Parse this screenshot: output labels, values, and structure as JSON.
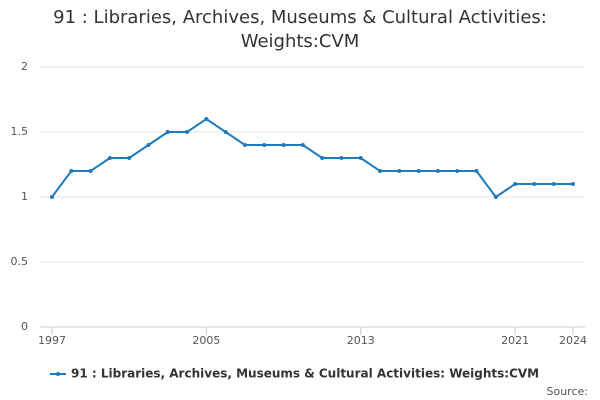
{
  "chart_data": {
    "type": "line",
    "title": "91 : Libraries, Archives, Museums & Cultural Activities: Weights:CVM",
    "x": [
      1997,
      1998,
      1999,
      2000,
      2001,
      2002,
      2003,
      2004,
      2005,
      2006,
      2007,
      2008,
      2009,
      2010,
      2011,
      2012,
      2013,
      2014,
      2015,
      2016,
      2017,
      2018,
      2019,
      2020,
      2021,
      2022,
      2023,
      2024
    ],
    "series": [
      {
        "name": "91 : Libraries, Archives, Museums & Cultural Activities: Weights:CVM",
        "color": "#1f7bbb",
        "values": [
          1.0,
          1.2,
          1.2,
          1.3,
          1.3,
          1.4,
          1.5,
          1.5,
          1.6,
          1.5,
          1.4,
          1.4,
          1.4,
          1.4,
          1.3,
          1.3,
          1.3,
          1.2,
          1.2,
          1.2,
          1.2,
          1.2,
          1.2,
          1.0,
          1.1,
          1.1,
          1.1,
          1.1
        ]
      }
    ],
    "xlim": [
      1997,
      2024
    ],
    "xticks": [
      1997,
      2005,
      2013,
      2021,
      2024
    ],
    "ylim": [
      0,
      2
    ],
    "yticks": [
      0,
      0.5,
      1,
      1.5,
      2
    ],
    "grid": true,
    "source": "Source:"
  }
}
